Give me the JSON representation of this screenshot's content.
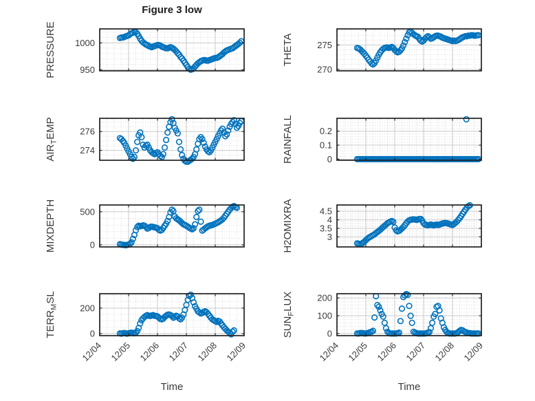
{
  "figure": {
    "title": "Figure 3 low"
  },
  "x_axis": {
    "label": "Time",
    "lim": [
      0,
      5
    ],
    "ticks": [
      0,
      1,
      2,
      3,
      4,
      5
    ],
    "tick_labels": [
      "12/04",
      "12/05",
      "12/06",
      "12/07",
      "12/08",
      "12/09"
    ],
    "minor_step": 0.25
  },
  "style": {
    "marker_color": "#0072BD",
    "frame_color": "#212121",
    "major_grid_color": "#c9c9c9",
    "minor_grid_color": "#d6d6d6",
    "tick_text_color": "#3a3a3a"
  },
  "chart_data": [
    {
      "type": "scatter",
      "panel": "pressure",
      "row": 0,
      "col": 0,
      "ylabel_parts": [
        [
          "PRESSURE",
          false
        ]
      ],
      "yticks": [
        950,
        1000
      ],
      "ylim": [
        948,
        1026
      ],
      "yminor": 10,
      "x0": 0.7,
      "dx": 0.05,
      "y": [
        1009,
        1010,
        1010,
        1011,
        1012,
        1013,
        1014,
        1016,
        1018,
        1019,
        1021,
        1020,
        1017,
        1013,
        1008,
        1004,
        1001,
        999,
        997,
        996,
        994,
        993,
        992,
        993,
        994,
        995,
        996,
        996,
        995,
        993,
        992,
        991,
        990,
        990,
        991,
        992,
        991,
        989,
        987,
        984,
        981,
        978,
        974,
        971,
        967,
        963,
        959,
        955,
        952,
        950,
        951,
        953,
        956,
        959,
        962,
        964,
        966,
        967,
        968,
        968,
        967,
        967,
        968,
        969,
        970,
        971,
        972,
        972,
        973,
        975,
        977,
        979,
        982,
        984,
        986,
        987,
        988,
        989,
        990,
        992,
        994,
        996,
        998,
        1000,
        1003
      ]
    },
    {
      "type": "scatter",
      "panel": "theta",
      "row": 0,
      "col": 1,
      "ylabel_parts": [
        [
          "THETA",
          false
        ]
      ],
      "yticks": [
        270,
        275
      ],
      "ylim": [
        269.7,
        278.3
      ],
      "yminor": 1,
      "x0": 0.7,
      "dx": 0.05,
      "y": [
        274.4,
        274.3,
        274.1,
        273.8,
        273.5,
        273.2,
        272.8,
        272.4,
        272.0,
        271.6,
        271.2,
        271.0,
        271.3,
        271.8,
        272.4,
        273.0,
        273.5,
        273.9,
        274.2,
        274.4,
        274.5,
        274.5,
        274.4,
        274.5,
        274.6,
        274.4,
        274.0,
        273.7,
        273.5,
        273.6,
        273.9,
        274.3,
        274.9,
        275.6,
        276.3,
        277.0,
        277.6,
        277.8,
        277.5,
        277.2,
        277.0,
        276.8,
        276.7,
        276.3,
        275.9,
        275.7,
        275.9,
        276.3,
        276.6,
        276.8,
        276.6,
        276.3,
        276.4,
        276.6,
        276.8,
        276.9,
        276.9,
        276.8,
        276.7,
        276.5,
        276.4,
        276.3,
        276.2,
        276.1,
        276.0,
        275.9,
        275.8,
        275.9,
        275.8,
        275.9,
        276.0,
        276.2,
        276.4,
        276.6,
        276.7,
        276.8,
        276.8,
        276.9,
        276.9,
        277.0,
        277.0,
        276.9,
        276.9,
        277.0,
        277.0
      ]
    },
    {
      "type": "scatter",
      "panel": "air-temp",
      "row": 1,
      "col": 0,
      "ylabel_parts": [
        [
          "AIR",
          false
        ],
        [
          "T",
          true
        ],
        [
          "EMP",
          false
        ]
      ],
      "yticks": [
        274,
        276
      ],
      "ylim": [
        272.95,
        277.4
      ],
      "yminor": 0.5,
      "x0": 0.7,
      "dx": 0.05,
      "y": [
        275.3,
        275.2,
        275.0,
        274.8,
        274.5,
        274.2,
        273.9,
        273.6,
        273.3,
        273.1,
        273.3,
        274.0,
        274.9,
        275.6,
        275.9,
        275.4,
        274.6,
        274.3,
        274.5,
        274.6,
        274.3,
        274.0,
        273.8,
        273.7,
        273.6,
        273.7,
        273.8,
        273.6,
        273.4,
        273.3,
        273.6,
        274.3,
        275.1,
        275.9,
        276.5,
        277.0,
        277.3,
        276.9,
        276.4,
        276.1,
        275.8,
        274.9,
        274.1,
        273.5,
        273.1,
        272.9,
        272.8,
        272.8,
        272.9,
        273.0,
        273.1,
        273.3,
        273.6,
        274.1,
        274.7,
        275.2,
        275.4,
        275.2,
        274.8,
        274.4,
        274.1,
        273.9,
        273.8,
        274.0,
        274.3,
        274.6,
        274.9,
        275.2,
        275.5,
        275.8,
        276.1,
        276.3,
        275.9,
        275.5,
        275.7,
        276.1,
        276.5,
        276.8,
        277.0,
        277.2,
        276.8,
        276.4,
        276.6,
        276.9,
        277.1
      ]
    },
    {
      "type": "scatter",
      "panel": "rainfall",
      "row": 1,
      "col": 1,
      "ylabel_parts": [
        [
          "RAINFALL",
          false
        ]
      ],
      "yticks": [
        0,
        0.1,
        0.2
      ],
      "ylim": [
        -0.008,
        0.292
      ],
      "yminor": 0.02,
      "x0": 0.7,
      "dx": 0.05,
      "y": [
        0,
        0,
        0,
        0,
        0,
        0,
        0,
        0,
        0,
        0,
        0,
        0,
        0,
        0,
        0,
        0,
        0,
        0,
        0,
        0,
        0,
        0,
        0,
        0,
        0,
        0,
        0,
        0,
        0,
        0,
        0,
        0,
        0,
        0,
        0,
        0,
        0,
        0,
        0,
        0,
        0,
        0,
        0,
        0,
        0,
        0,
        0,
        0,
        0,
        0,
        0,
        0,
        0,
        0,
        0,
        0,
        0,
        0,
        0,
        0,
        0,
        0,
        0,
        0,
        0,
        0,
        0,
        0,
        0,
        0,
        0,
        0,
        0,
        0,
        0,
        0,
        0,
        0,
        0,
        0,
        0,
        0,
        0,
        0,
        0
      ],
      "extra_points": [
        [
          4.48,
          0.285
        ]
      ]
    },
    {
      "type": "scatter",
      "panel": "mixdepth",
      "row": 2,
      "col": 0,
      "ylabel_parts": [
        [
          "MIXDEPTH",
          false
        ]
      ],
      "yticks": [
        0,
        500
      ],
      "ylim": [
        -31,
        602
      ],
      "yminor": 100,
      "x0": 0.7,
      "dx": 0.05,
      "y": [
        10,
        5,
        0,
        0,
        -5,
        0,
        5,
        15,
        40,
        90,
        150,
        220,
        270,
        290,
        280,
        285,
        295,
        290,
        270,
        245,
        255,
        270,
        275,
        270,
        265,
        260,
        250,
        225,
        215,
        225,
        255,
        290,
        320,
        360,
        420,
        490,
        530,
        510,
        430,
        400,
        385,
        370,
        350,
        330,
        310,
        300,
        290,
        275,
        260,
        245,
        235,
        250,
        310,
        420,
        510,
        530,
        350,
        215,
        230,
        250,
        265,
        280,
        290,
        295,
        300,
        310,
        320,
        330,
        340,
        355,
        370,
        385,
        410,
        440,
        470,
        500,
        530,
        555,
        575,
        585,
        570,
        560
      ]
    },
    {
      "type": "scatter",
      "panel": "h2omixra",
      "row": 2,
      "col": 1,
      "ylabel_parts": [
        [
          "H2OMIXRA",
          false
        ]
      ],
      "yticks": [
        3,
        3.5,
        4,
        4.5
      ],
      "ylim": [
        2.41,
        4.87
      ],
      "yminor": 0.1,
      "x0": 0.7,
      "dx": 0.05,
      "y": [
        2.62,
        2.6,
        2.58,
        2.6,
        2.65,
        2.72,
        2.8,
        2.88,
        2.95,
        3.0,
        3.05,
        3.1,
        3.15,
        3.22,
        3.28,
        3.35,
        3.42,
        3.5,
        3.58,
        3.65,
        3.72,
        3.8,
        3.85,
        3.9,
        3.93,
        3.88,
        3.55,
        3.38,
        3.32,
        3.35,
        3.42,
        3.5,
        3.58,
        3.68,
        3.8,
        3.9,
        3.97,
        4.0,
        4.02,
        4.03,
        4.02,
        4.0,
        4.02,
        4.05,
        4.05,
        3.95,
        3.8,
        3.72,
        3.7,
        3.68,
        3.7,
        3.72,
        3.7,
        3.68,
        3.7,
        3.72,
        3.7,
        3.72,
        3.75,
        3.78,
        3.8,
        3.82,
        3.8,
        3.78,
        3.75,
        3.72,
        3.7,
        3.75,
        3.82,
        3.9,
        4.0,
        4.1,
        4.22,
        4.35,
        4.48,
        4.6,
        4.72,
        4.8,
        4.85
      ]
    },
    {
      "type": "scatter",
      "panel": "terr-msl",
      "row": 3,
      "col": 0,
      "ylabel_parts": [
        [
          "TERR",
          false
        ],
        [
          "M",
          true
        ],
        [
          "SL",
          false
        ]
      ],
      "yticks": [
        0,
        200
      ],
      "ylim": [
        -16,
        313
      ],
      "yminor": 50,
      "x0": 0.7,
      "dx": 0.05,
      "y": [
        2,
        0,
        3,
        5,
        2,
        0,
        3,
        5,
        8,
        5,
        3,
        8,
        20,
        45,
        80,
        105,
        120,
        130,
        140,
        145,
        140,
        138,
        142,
        145,
        140,
        138,
        135,
        125,
        115,
        112,
        118,
        130,
        140,
        148,
        150,
        145,
        138,
        125,
        132,
        140,
        135,
        120,
        112,
        125,
        150,
        185,
        225,
        265,
        295,
        305,
        280,
        245,
        215,
        195,
        175,
        165,
        158,
        162,
        170,
        175,
        168,
        155,
        140,
        125,
        112,
        105,
        98,
        92,
        100,
        95,
        80,
        65,
        50,
        38,
        25,
        15,
        8,
        -5,
        15,
        25
      ]
    },
    {
      "type": "scatter",
      "panel": "sun-flux",
      "row": 3,
      "col": 1,
      "ylabel_parts": [
        [
          "SUN",
          false
        ],
        [
          "F",
          true
        ],
        [
          "LUX",
          false
        ]
      ],
      "yticks": [
        0,
        100,
        200
      ],
      "ylim": [
        -12,
        224
      ],
      "yminor": 20,
      "x0": 0.7,
      "dx": 0.05,
      "y": [
        0,
        0,
        2,
        3,
        2,
        0,
        0,
        2,
        5,
        8,
        10,
        15,
        90,
        210,
        160,
        150,
        130,
        110,
        95,
        60,
        30,
        10,
        3,
        0,
        0,
        0,
        0,
        0,
        2,
        5,
        70,
        140,
        205,
        215,
        222,
        218,
        155,
        100,
        60,
        10,
        5,
        2,
        0,
        0,
        0,
        0,
        0,
        0,
        2,
        5,
        8,
        30,
        60,
        95,
        110,
        150,
        155,
        130,
        85,
        60,
        35,
        20,
        8,
        3,
        0,
        0,
        0,
        0,
        0,
        3,
        8,
        15,
        20,
        18,
        12,
        8,
        5,
        3,
        2,
        0,
        0,
        0,
        0,
        0,
        0
      ]
    }
  ]
}
